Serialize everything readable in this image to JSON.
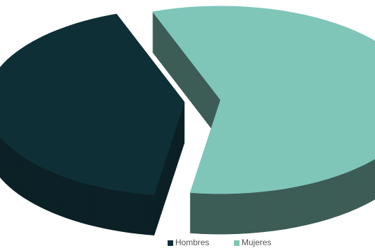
{
  "chart_data": {
    "type": "pie",
    "categories": [
      "Hombres",
      "Mujeres"
    ],
    "values": [
      42,
      58
    ],
    "colors": [
      "#0f2f36",
      "#7fc6b9"
    ],
    "legend": "bottom"
  }
}
